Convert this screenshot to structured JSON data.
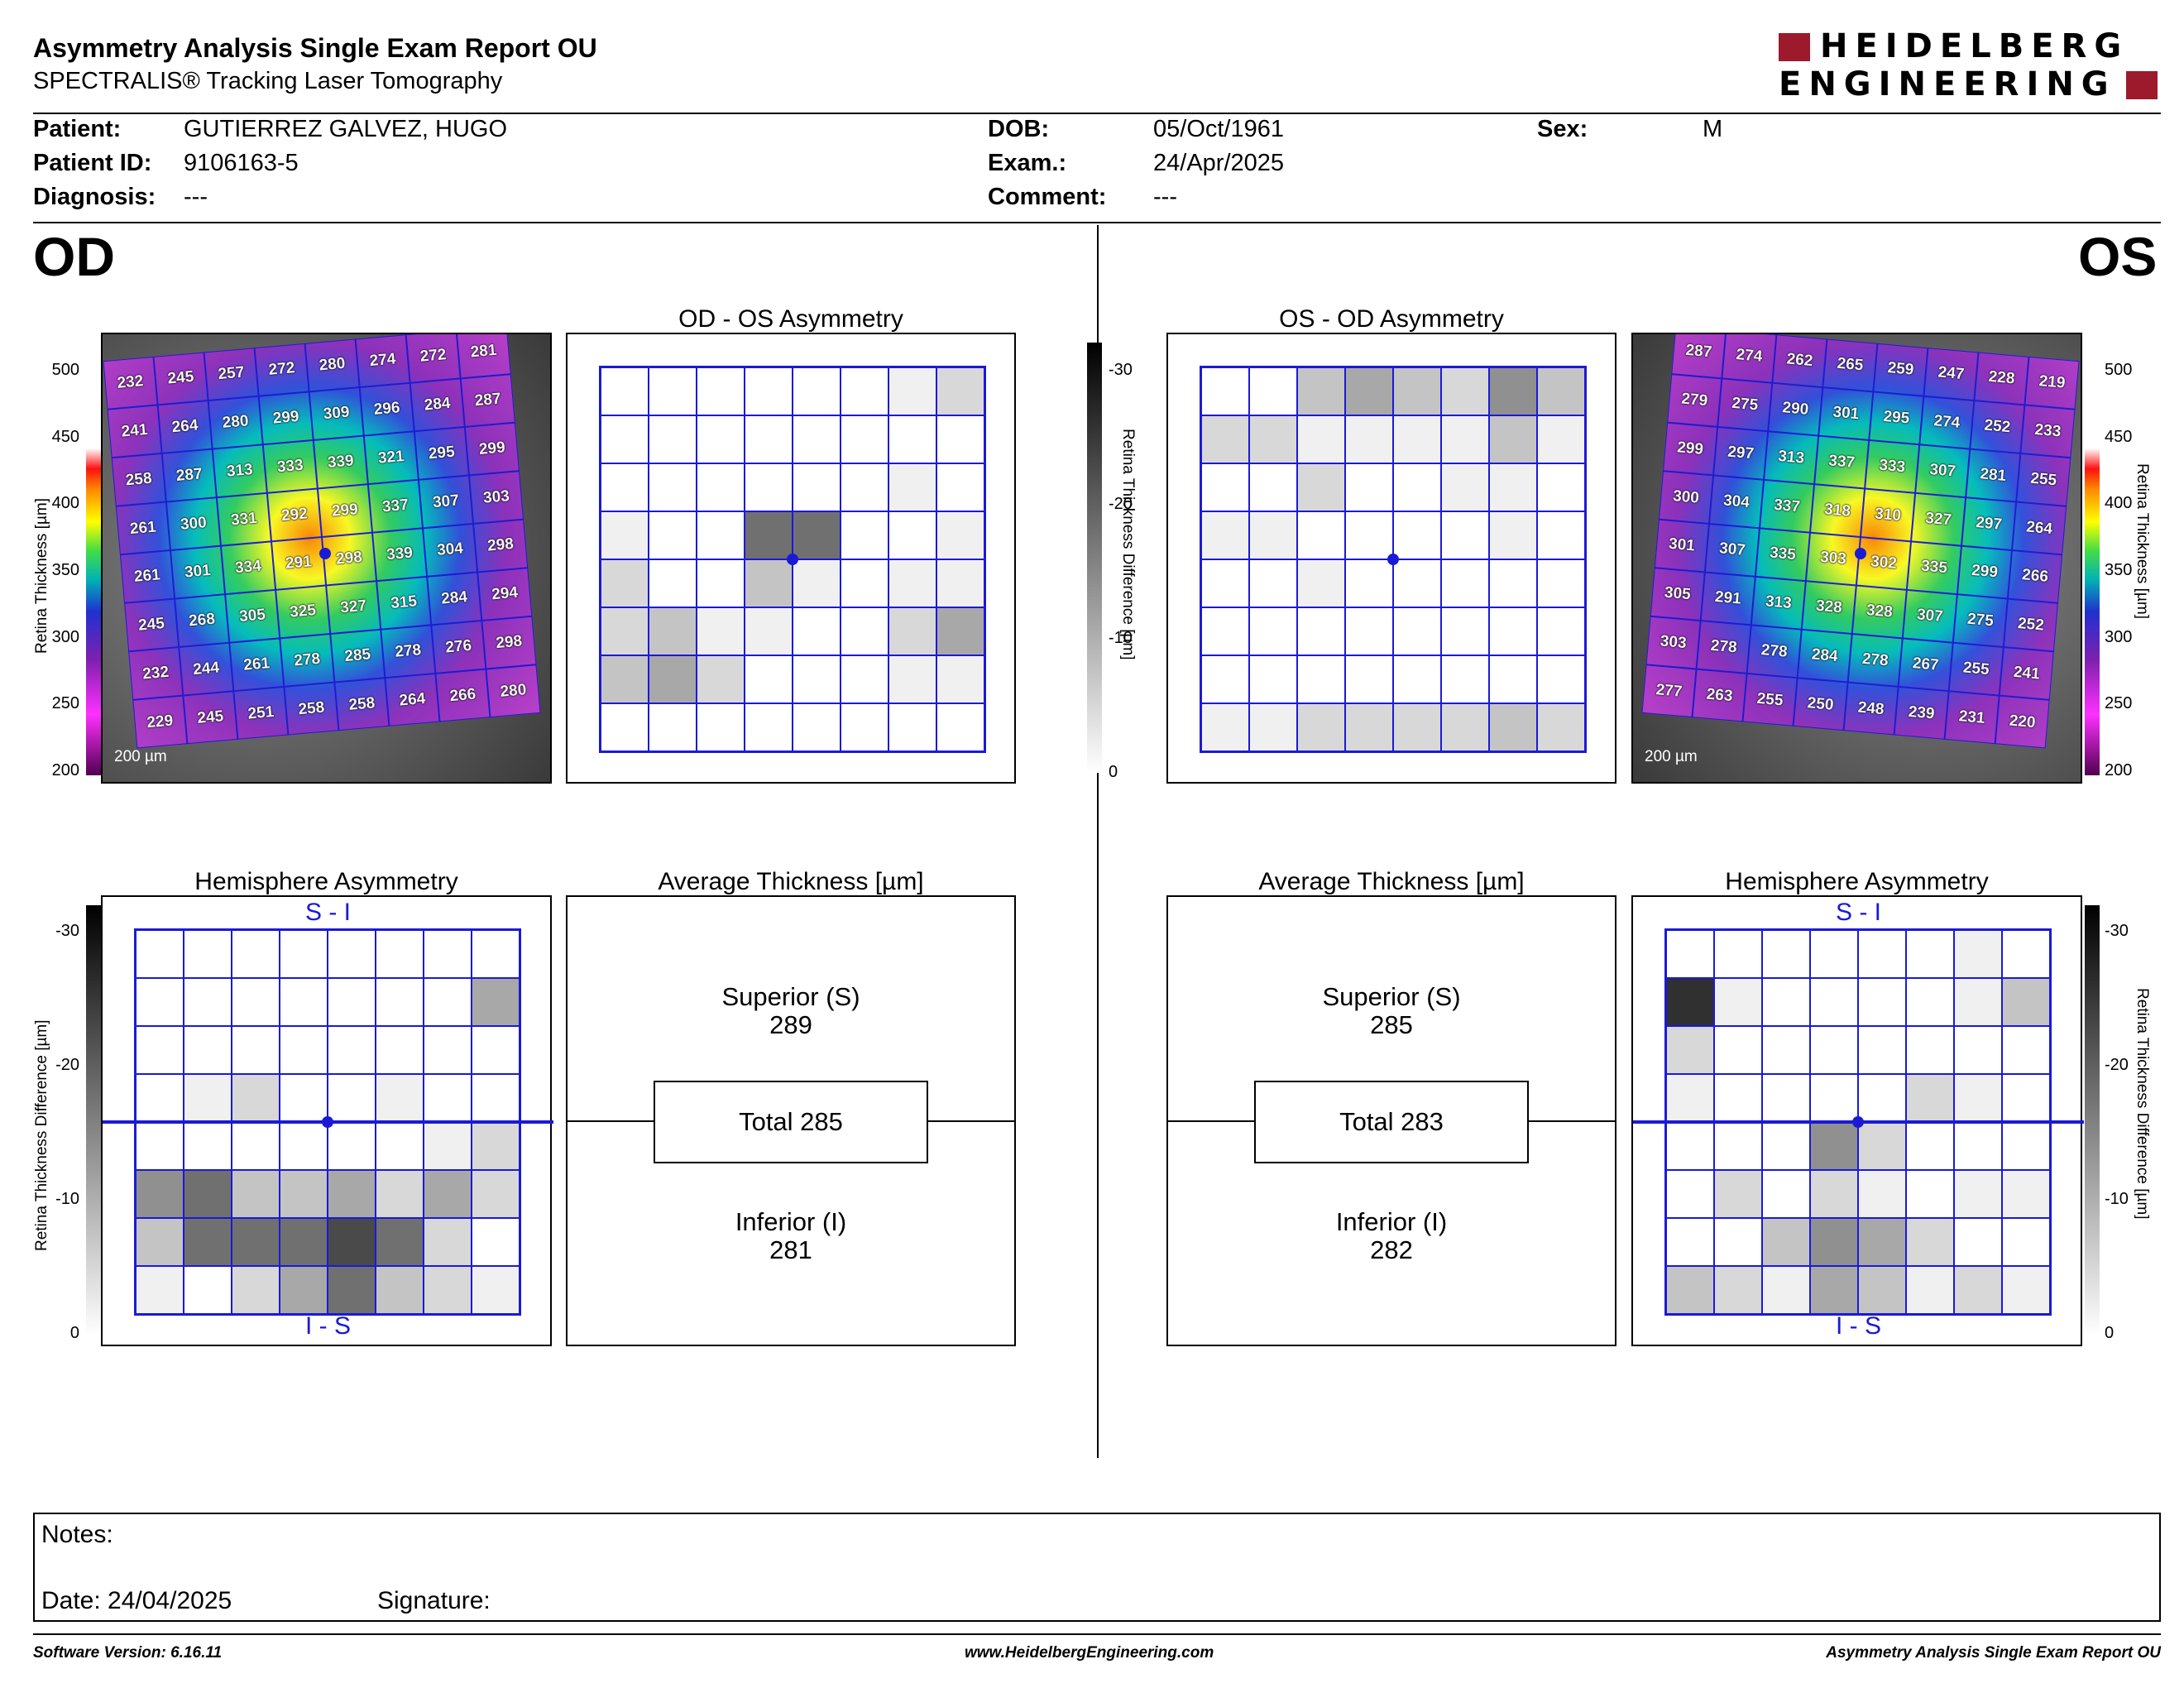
{
  "header": {
    "title": "Asymmetry Analysis Single Exam Report OU",
    "subtitle": "SPECTRALIS® Tracking Laser Tomography",
    "logo_line1": "HEIDELBERG",
    "logo_line2": "ENGINEERING",
    "brand_color": "#9c1a2b"
  },
  "patient": {
    "patient_label": "Patient:",
    "patient": "GUTIERREZ GALVEZ, HUGO",
    "id_label": "Patient ID:",
    "id": "9106163-5",
    "diagnosis_label": "Diagnosis:",
    "diagnosis": "---",
    "dob_label": "DOB:",
    "dob": "05/Oct/1961",
    "exam_label": "Exam.:",
    "exam": "24/Apr/2025",
    "comment_label": "Comment:",
    "comment": "---",
    "sex_label": "Sex:",
    "sex": "M"
  },
  "eyes": {
    "od": "OD",
    "os": "OS"
  },
  "thickness_scale": {
    "label": "Retina Thickness [µm]",
    "ticks": [
      "500",
      "450",
      "400",
      "350",
      "300",
      "250",
      "200"
    ]
  },
  "diff_scale": {
    "label": "Retina Thickness Difference [µm]",
    "ticks": [
      "-30",
      "-20",
      "-10",
      "0"
    ]
  },
  "od": {
    "scale_label": "200 µm",
    "thickness": [
      [
        "232",
        "245",
        "257",
        "272",
        "280",
        "274",
        "272",
        "281"
      ],
      [
        "241",
        "264",
        "280",
        "299",
        "309",
        "296",
        "284",
        "287"
      ],
      [
        "258",
        "287",
        "313",
        "333",
        "339",
        "321",
        "295",
        "299"
      ],
      [
        "261",
        "300",
        "331",
        "292",
        "299",
        "337",
        "307",
        "303"
      ],
      [
        "261",
        "301",
        "334",
        "291",
        "298",
        "339",
        "304",
        "298"
      ],
      [
        "245",
        "268",
        "305",
        "325",
        "327",
        "315",
        "284",
        "294"
      ],
      [
        "232",
        "244",
        "261",
        "278",
        "285",
        "278",
        "276",
        "298"
      ],
      [
        "229",
        "245",
        "251",
        "258",
        "258",
        "264",
        "266",
        "280"
      ]
    ],
    "asym_title": "OD - OS Asymmetry",
    "asym": [
      [
        0,
        0,
        0,
        0,
        0,
        0,
        1,
        2
      ],
      [
        0,
        0,
        0,
        0,
        0,
        0,
        0,
        0
      ],
      [
        0,
        0,
        0,
        0,
        0,
        0,
        1,
        0
      ],
      [
        1,
        0,
        0,
        6,
        6,
        0,
        0,
        1
      ],
      [
        2,
        0,
        0,
        3,
        1,
        0,
        1,
        1
      ],
      [
        2,
        3,
        1,
        1,
        0,
        0,
        2,
        4
      ],
      [
        3,
        4,
        2,
        0,
        0,
        0,
        1,
        1
      ],
      [
        0,
        0,
        0,
        0,
        0,
        0,
        0,
        0
      ]
    ],
    "hem_title": "Hemisphere Asymmetry",
    "hem_top": "S - I",
    "hem_bottom": "I - S",
    "hem": [
      [
        0,
        0,
        0,
        0,
        0,
        0,
        0,
        0
      ],
      [
        0,
        0,
        0,
        0,
        0,
        0,
        0,
        4
      ],
      [
        0,
        0,
        0,
        0,
        0,
        0,
        0,
        0
      ],
      [
        0,
        1,
        2,
        0,
        0,
        1,
        0,
        0
      ],
      [
        0,
        0,
        0,
        0,
        0,
        0,
        1,
        2
      ],
      [
        5,
        6,
        3,
        3,
        4,
        2,
        4,
        2
      ],
      [
        3,
        6,
        6,
        6,
        7,
        6,
        2,
        0
      ],
      [
        1,
        0,
        2,
        4,
        6,
        3,
        2,
        1
      ]
    ],
    "avg_title": "Average Thickness [µm]",
    "superior_label": "Superior (S)",
    "superior": "289",
    "total_label": "Total 285",
    "inferior_label": "Inferior (I)",
    "inferior": "281"
  },
  "os": {
    "scale_label": "200 µm",
    "thickness": [
      [
        "287",
        "274",
        "262",
        "265",
        "259",
        "247",
        "228",
        "219"
      ],
      [
        "279",
        "275",
        "290",
        "301",
        "295",
        "274",
        "252",
        "233"
      ],
      [
        "299",
        "297",
        "313",
        "337",
        "333",
        "307",
        "281",
        "255"
      ],
      [
        "300",
        "304",
        "337",
        "318",
        "310",
        "327",
        "297",
        "264"
      ],
      [
        "301",
        "307",
        "335",
        "303",
        "302",
        "335",
        "299",
        "266"
      ],
      [
        "305",
        "291",
        "313",
        "328",
        "328",
        "307",
        "275",
        "252"
      ],
      [
        "303",
        "278",
        "278",
        "284",
        "278",
        "267",
        "255",
        "241"
      ],
      [
        "277",
        "263",
        "255",
        "250",
        "248",
        "239",
        "231",
        "220"
      ]
    ],
    "asym_title": "OS - OD Asymmetry",
    "asym": [
      [
        0,
        0,
        3,
        4,
        3,
        2,
        5,
        3
      ],
      [
        2,
        2,
        1,
        1,
        1,
        1,
        3,
        1
      ],
      [
        0,
        0,
        2,
        0,
        0,
        1,
        1,
        0
      ],
      [
        1,
        1,
        0,
        0,
        0,
        0,
        1,
        0
      ],
      [
        0,
        0,
        1,
        0,
        0,
        0,
        0,
        0
      ],
      [
        0,
        0,
        0,
        0,
        0,
        0,
        0,
        0
      ],
      [
        0,
        0,
        0,
        0,
        0,
        0,
        0,
        0
      ],
      [
        1,
        1,
        2,
        2,
        2,
        2,
        3,
        2
      ]
    ],
    "hem_title": "Hemisphere Asymmetry",
    "hem_top": "S - I",
    "hem_bottom": "I - S",
    "hem": [
      [
        0,
        0,
        0,
        0,
        0,
        0,
        1,
        0
      ],
      [
        8,
        1,
        0,
        0,
        0,
        0,
        1,
        3
      ],
      [
        2,
        0,
        0,
        0,
        0,
        0,
        0,
        0
      ],
      [
        1,
        0,
        0,
        0,
        0,
        2,
        1,
        0
      ],
      [
        0,
        0,
        0,
        5,
        2,
        0,
        0,
        0
      ],
      [
        0,
        2,
        0,
        2,
        1,
        0,
        1,
        1
      ],
      [
        0,
        0,
        3,
        5,
        4,
        2,
        0,
        0
      ],
      [
        3,
        2,
        1,
        4,
        3,
        1,
        2,
        1
      ]
    ],
    "avg_title": "Average Thickness [µm]",
    "superior_label": "Superior (S)",
    "superior": "285",
    "total_label": "Total 283",
    "inferior_label": "Inferior (I)",
    "inferior": "282"
  },
  "notes": {
    "label": "Notes:",
    "date_label": "Date: 24/04/2025",
    "signature_label": "Signature:"
  },
  "footer": {
    "version": "Software Version: 6.16.11",
    "website": "www.HeidelbergEngineering.com",
    "report": "Asymmetry Analysis Single Exam Report OU"
  }
}
